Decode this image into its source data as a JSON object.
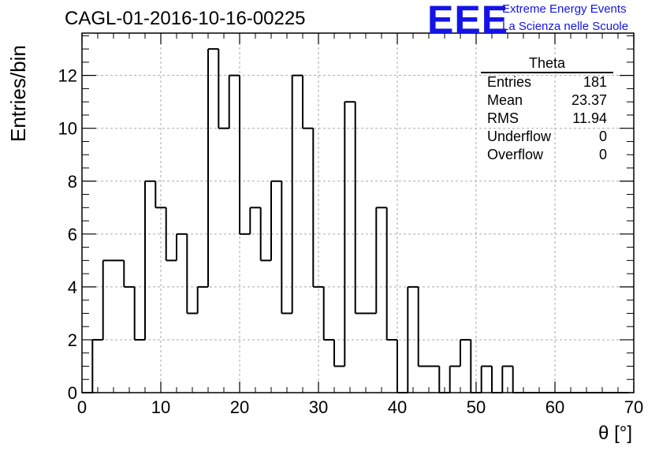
{
  "title": "CAGL-01-2016-10-16-00225",
  "logo": {
    "letters": "EEE",
    "line1": "Extreme Energy Events",
    "line2": "La Scienza nelle Scuole",
    "color": "#1414e6"
  },
  "stats": {
    "title": "Theta",
    "rows": [
      {
        "label": "Entries",
        "value": "181"
      },
      {
        "label": "Mean",
        "value": "23.37"
      },
      {
        "label": "RMS",
        "value": "11.94"
      },
      {
        "label": "Underflow",
        "value": "0"
      },
      {
        "label": "Overflow",
        "value": "0"
      }
    ]
  },
  "chart_data": {
    "type": "bar",
    "histogram": true,
    "title": "CAGL-01-2016-10-16-00225",
    "xlabel": "θ [°]",
    "ylabel": "Entries/bin",
    "xlim": [
      0,
      70
    ],
    "ylim": [
      0,
      13.6
    ],
    "x_ticks": [
      0,
      10,
      20,
      30,
      40,
      50,
      60,
      70
    ],
    "y_ticks": [
      0,
      2,
      4,
      6,
      8,
      10,
      12
    ],
    "grid": true,
    "bin_edges": [
      0.0,
      1.33,
      2.67,
      4.0,
      5.33,
      6.67,
      8.0,
      9.33,
      10.67,
      12.0,
      13.33,
      14.67,
      16.0,
      17.33,
      18.67,
      20.0,
      21.33,
      22.67,
      24.0,
      25.33,
      26.67,
      28.0,
      29.33,
      30.67,
      32.0,
      33.33,
      34.67,
      36.0,
      37.33,
      38.67,
      40.0,
      41.33,
      42.67,
      44.0,
      45.33,
      46.67,
      48.0,
      49.33,
      50.67,
      52.0,
      53.33,
      54.67,
      56.0,
      57.33,
      58.67,
      60.0,
      61.33,
      62.67,
      64.0,
      65.33,
      66.67,
      68.0,
      69.33
    ],
    "values": [
      0,
      2,
      5,
      5,
      4,
      2,
      8,
      7,
      5,
      6,
      3,
      4,
      13,
      10,
      12,
      6,
      7,
      5,
      8,
      3,
      12,
      10,
      4,
      2,
      1,
      11,
      3,
      3,
      7,
      2,
      0,
      4,
      1,
      1,
      0,
      1,
      2,
      0,
      1,
      0,
      1,
      0,
      0,
      0,
      0,
      0,
      0,
      0,
      0,
      0,
      0,
      0
    ],
    "line_color": "#000000"
  }
}
